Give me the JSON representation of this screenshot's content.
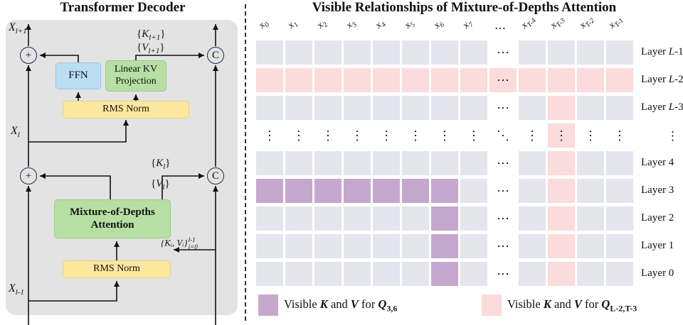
{
  "colors": {
    "panel_gray": "#e3e3e3",
    "ffn_blue": "#b9ddf3",
    "box_green": "#b7dfa3",
    "box_yellow": "#fce79e",
    "grid_default": "#e5e5ee",
    "grid_pink": "#fbdbdb",
    "grid_purple": "#c6a7ce",
    "line": "#111111"
  },
  "left": {
    "title": "Transformer Decoder",
    "nodes": {
      "plus": "+",
      "concat": "C"
    },
    "boxes": {
      "ffn": "FFN",
      "linear_kv": "Linear KV Projection",
      "rms_top": "RMS Norm",
      "mod_attention": "Mixture-of-Depths Attention",
      "rms_bottom": "RMS Norm"
    },
    "labels": {
      "x_next": {
        "base": "X",
        "sub": "l+1"
      },
      "k_next": {
        "pre": "{",
        "base": "K",
        "sub": "l+1",
        "post": "}"
      },
      "v_next": {
        "pre": "{",
        "base": "V",
        "sub": "l+1",
        "post": "}"
      },
      "x_cur": {
        "base": "X",
        "sub": "l"
      },
      "k_cur": {
        "pre": "{",
        "base": "K",
        "sub": "l",
        "post": "}"
      },
      "v_cur": {
        "pre": "{",
        "base": "V",
        "sub": "l",
        "post": "}"
      },
      "kv_cache": {
        "body": "{Kᵢ, Vᵢ}",
        "sup": "l-1",
        "sub": "i=0"
      },
      "x_prev": {
        "base": "X",
        "sub": "l-1"
      }
    }
  },
  "right": {
    "title": "Visible Relationships of Mixture-of-Depths Attention",
    "columns": [
      {
        "base": "x",
        "sub": "0"
      },
      {
        "base": "x",
        "sub": "1"
      },
      {
        "base": "x",
        "sub": "2"
      },
      {
        "base": "x",
        "sub": "3"
      },
      {
        "base": "x",
        "sub": "4"
      },
      {
        "base": "x",
        "sub": "5"
      },
      {
        "base": "x",
        "sub": "6"
      },
      {
        "base": "x",
        "sub": "7"
      },
      {
        "ellipsis": "⋯"
      },
      {
        "base": "x",
        "sub": "T-4"
      },
      {
        "base": "x",
        "sub": "T-3"
      },
      {
        "base": "x",
        "sub": "T-2"
      },
      {
        "base": "x",
        "sub": "T-1"
      }
    ],
    "row_labels": [
      {
        "text": "Layer ",
        "math": "L",
        "tail": "-1"
      },
      {
        "text": "Layer ",
        "math": "L",
        "tail": "-2"
      },
      {
        "text": "Layer ",
        "math": "L",
        "tail": "-3"
      },
      {
        "text": "⋮",
        "indent": true
      },
      {
        "text": "Layer 4"
      },
      {
        "text": "Layer 3"
      },
      {
        "text": "Layer 2"
      },
      {
        "text": "Layer 1"
      },
      {
        "text": "Layer 0"
      }
    ],
    "grid": [
      "ddddddddedddd",
      "ppppppppEpppp",
      "ddddddddedpdd",
      "::::::::x:%::",
      "ddddddddedpdd",
      "vvvvvvvdedpdd",
      "ddddddvdedpdd",
      "ddddddvdedpdd",
      "ddddddvdedpdd"
    ],
    "cell_glyphs": {
      "e": "⋯",
      "E": "⋯",
      ":": "⋮",
      "%": "⋮",
      "x": "⋱"
    },
    "legend": [
      {
        "pre": "Visible ",
        "k": "K",
        "mid": " and ",
        "v": "V",
        "post": " for ",
        "q": "Q",
        "sub": "3,6"
      },
      {
        "pre": "Visible ",
        "k": "K",
        "mid": " and ",
        "v": "V",
        "post": " for ",
        "q": "Q",
        "sub": "L-2,T-3"
      }
    ]
  }
}
